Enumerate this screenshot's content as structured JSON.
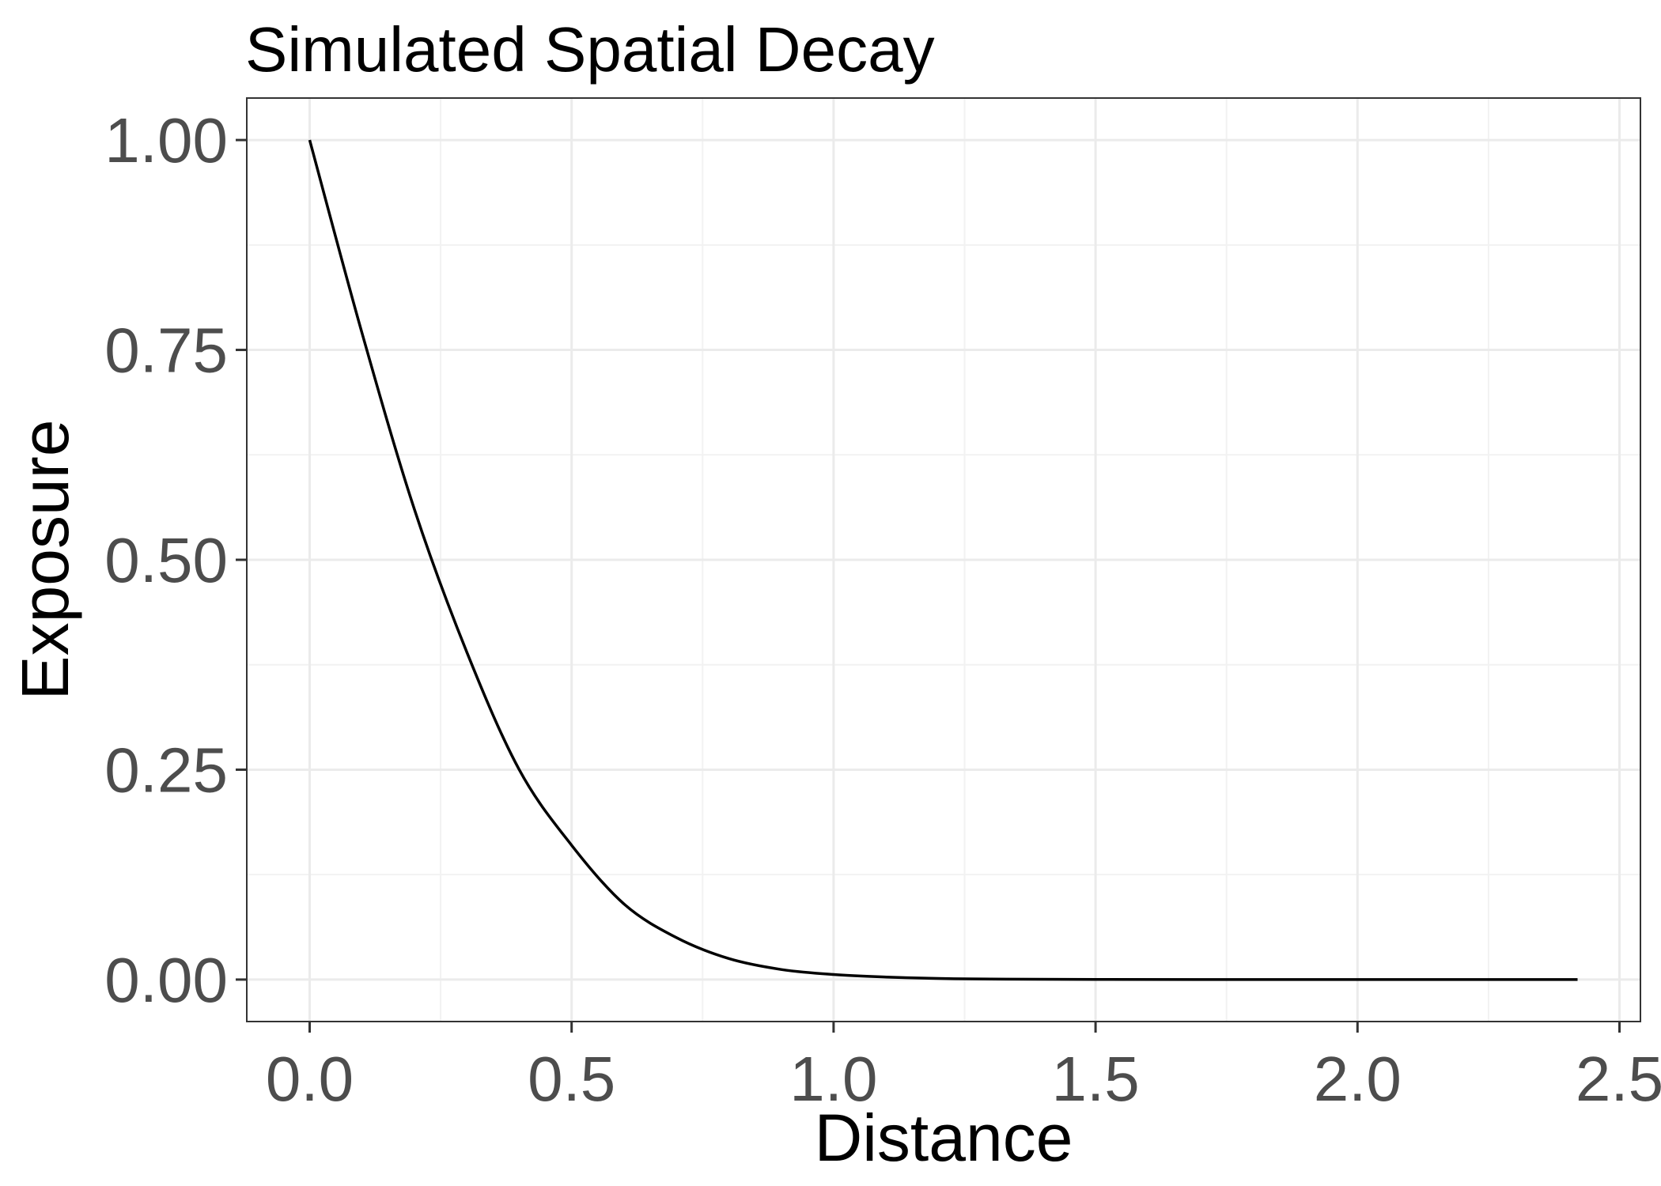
{
  "chart_data": {
    "type": "line",
    "title": "Simulated Spatial Decay",
    "xlabel": "Distance",
    "ylabel": "Exposure",
    "xlim": [
      -0.12,
      2.54
    ],
    "ylim": [
      -0.05,
      1.05
    ],
    "x_ticks": [
      0.0,
      0.5,
      1.0,
      1.5,
      2.0,
      2.5
    ],
    "x_tick_labels": [
      "0.0",
      "0.5",
      "1.0",
      "1.5",
      "2.0",
      "2.5"
    ],
    "y_ticks": [
      0.0,
      0.25,
      0.5,
      0.75,
      1.0
    ],
    "y_tick_labels": [
      "0.00",
      "0.25",
      "0.50",
      "0.75",
      "1.00"
    ],
    "grid": true,
    "legend": "none",
    "colors": {
      "line": "#000000",
      "grid_major": "#ebebeb",
      "grid_minor": "#f2f2f2",
      "panel_border": "#333333",
      "tick_label": "#4d4d4d"
    },
    "series": [
      {
        "x": [
          0.0,
          0.1,
          0.2,
          0.3,
          0.4,
          0.5,
          0.6,
          0.7,
          0.8,
          0.9,
          1.0,
          1.1,
          1.2,
          1.3,
          1.5,
          1.8,
          2.1,
          2.42
        ],
        "y": [
          1.0,
          0.77,
          0.56,
          0.39,
          0.25,
          0.16,
          0.09,
          0.05,
          0.025,
          0.012,
          0.006,
          0.003,
          0.0013,
          0.0006,
          0.0001,
          0.0,
          0.0,
          0.0
        ]
      }
    ]
  }
}
